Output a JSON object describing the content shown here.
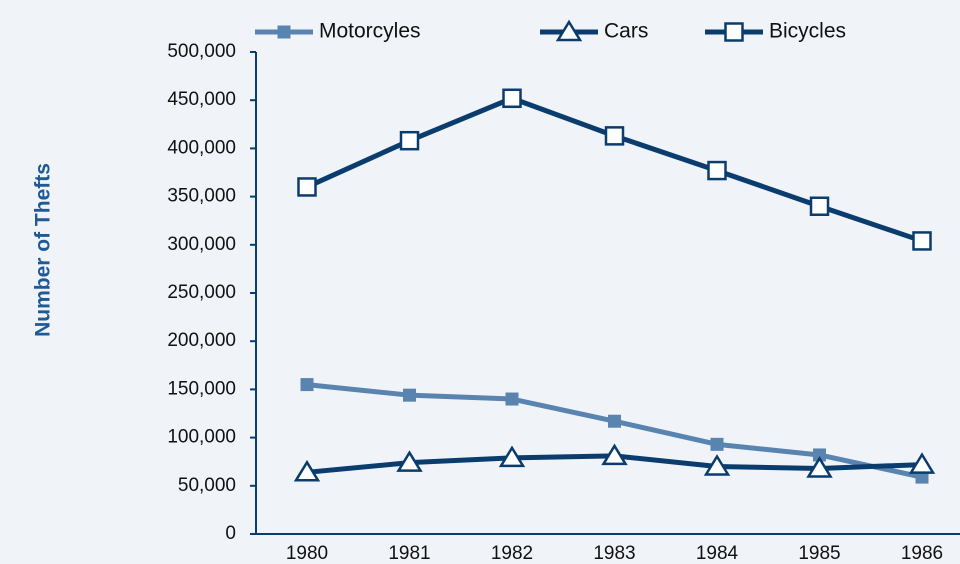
{
  "chart_data": {
    "type": "line",
    "y_label": "Number of Thefts",
    "categories": [
      "1980",
      "1981",
      "1982",
      "1983",
      "1984",
      "1985",
      "1986"
    ],
    "series": [
      {
        "name": "Motorcyles",
        "color": "#5a84b0",
        "marker": "filled-square",
        "values": [
          155000,
          144000,
          140000,
          117000,
          93000,
          82000,
          59000
        ]
      },
      {
        "name": "Cars",
        "color": "#0b3c6e",
        "marker": "triangle",
        "values": [
          64000,
          74000,
          79000,
          81000,
          70000,
          68000,
          72000
        ]
      },
      {
        "name": "Bicycles",
        "color": "#0b3c6e",
        "marker": "square",
        "values": [
          360000,
          408000,
          452000,
          413000,
          377000,
          340000,
          304000
        ]
      }
    ],
    "ylim": [
      0,
      500000
    ],
    "yticks": [
      0,
      {
        "value": 50000,
        "label": "50,000"
      },
      {
        "value": 100000,
        "label": "100,000"
      },
      {
        "value": 150000,
        "label": "150,000"
      },
      {
        "value": 200000,
        "label": "200,000"
      },
      {
        "value": 250000,
        "label": "250,000"
      },
      {
        "value": 300000,
        "label": "300,000"
      },
      {
        "value": 350000,
        "label": "350,000"
      },
      {
        "value": 400000,
        "label": "400,000"
      },
      {
        "value": 450000,
        "label": "450,000"
      },
      {
        "value": 500000,
        "label": "500,000"
      }
    ],
    "grid": false,
    "legend": "top"
  }
}
